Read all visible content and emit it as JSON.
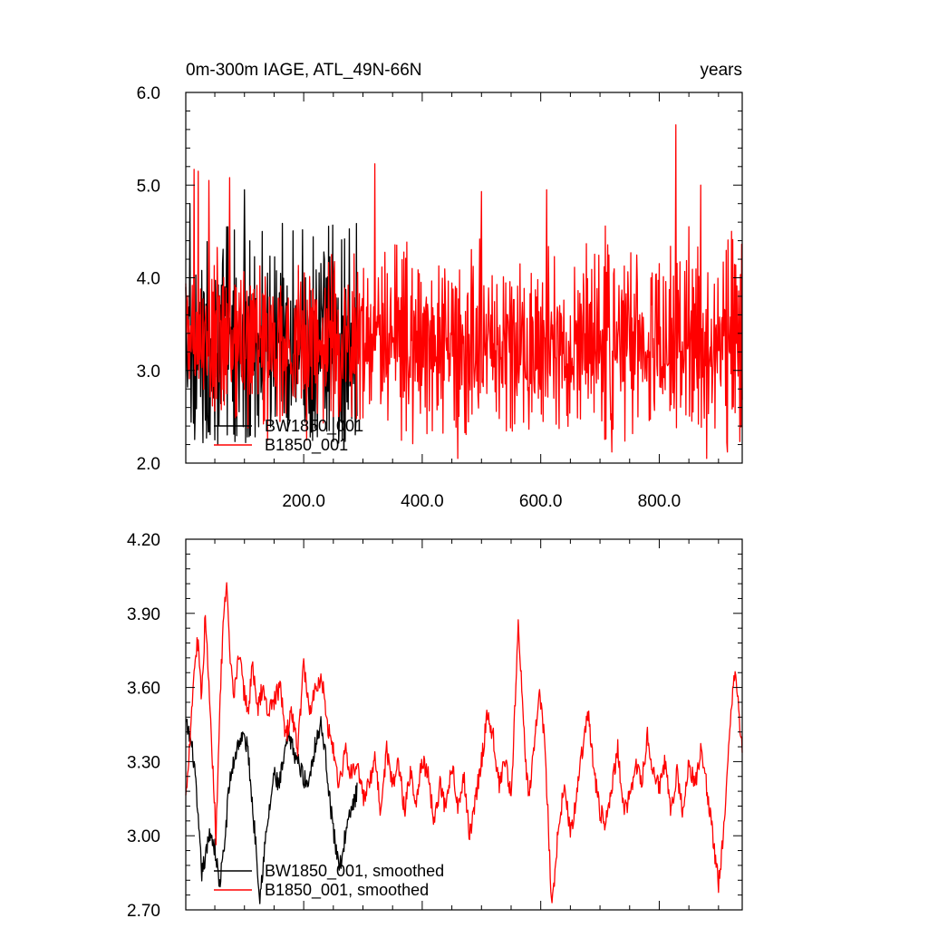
{
  "chart_data": [
    {
      "type": "line",
      "title": "0m-300m IAGE, ATL_49N-66N",
      "units_label": "years",
      "xlim": [
        1,
        940
      ],
      "ylim": [
        2.0,
        6.0
      ],
      "x_tick_labels": [
        "200.0",
        "400.0",
        "600.0",
        "800.0"
      ],
      "x_ticks": [
        200,
        400,
        600,
        800
      ],
      "y_tick_labels": [
        "2.0",
        "3.0",
        "4.0",
        "5.0",
        "6.0"
      ],
      "y_ticks": [
        2.0,
        3.0,
        4.0,
        5.0,
        6.0
      ],
      "grid": false,
      "legend_position": "bottom-left",
      "series": [
        {
          "name": "BW1850_001",
          "color": "#000000",
          "x_range": [
            1,
            290
          ],
          "step": 1,
          "mean": 3.2,
          "amplitude": 0.65,
          "peaks": [
            [
              8,
              4.8
            ],
            [
              100,
              4.95
            ],
            [
              70,
              4.55
            ],
            [
              130,
              4.5
            ],
            [
              235,
              4.2
            ]
          ],
          "troughs": [
            [
              30,
              2.22
            ],
            [
              110,
              2.3
            ],
            [
              260,
              2.42
            ]
          ]
        },
        {
          "name": "B1850_001",
          "color": "#ff0000",
          "x_range": [
            1,
            940
          ],
          "step": 1,
          "mean": 3.3,
          "amplitude": 0.55,
          "peaks": [
            [
              15,
              5.17
            ],
            [
              22,
              5.15
            ],
            [
              40,
              5.05
            ],
            [
              75,
              5.08
            ],
            [
              320,
              5.23
            ],
            [
              500,
              4.93
            ],
            [
              610,
              4.95
            ],
            [
              720,
              5.3
            ],
            [
              828,
              5.65
            ],
            [
              870,
              5.0
            ]
          ],
          "troughs": [
            [
              460,
              2.05
            ],
            [
              720,
              2.12
            ],
            [
              880,
              2.05
            ],
            [
              915,
              2.12
            ]
          ]
        }
      ]
    },
    {
      "type": "line",
      "title": "",
      "xlim": [
        1,
        940
      ],
      "ylim": [
        2.7,
        4.2
      ],
      "y_tick_labels": [
        "2.70",
        "3.00",
        "3.30",
        "3.60",
        "3.90",
        "4.20"
      ],
      "y_ticks": [
        2.7,
        3.0,
        3.3,
        3.6,
        3.9,
        4.2
      ],
      "x_ticks": [
        200,
        400,
        600,
        800
      ],
      "grid": false,
      "legend_position": "bottom-left",
      "series": [
        {
          "name": "BW1850_001, smoothed",
          "color": "#000000",
          "x_range": [
            1,
            290
          ],
          "step": 1,
          "anchors": [
            [
              1,
              3.45
            ],
            [
              8,
              3.4
            ],
            [
              15,
              3.3
            ],
            [
              22,
              3.05
            ],
            [
              28,
              2.85
            ],
            [
              35,
              2.92
            ],
            [
              42,
              3.02
            ],
            [
              50,
              2.95
            ],
            [
              58,
              2.8
            ],
            [
              66,
              2.95
            ],
            [
              74,
              3.2
            ],
            [
              82,
              3.3
            ],
            [
              90,
              3.38
            ],
            [
              98,
              3.4
            ],
            [
              106,
              3.35
            ],
            [
              114,
              3.1
            ],
            [
              120,
              2.95
            ],
            [
              126,
              2.75
            ],
            [
              134,
              2.95
            ],
            [
              142,
              3.1
            ],
            [
              150,
              3.25
            ],
            [
              158,
              3.2
            ],
            [
              166,
              3.3
            ],
            [
              174,
              3.4
            ],
            [
              182,
              3.35
            ],
            [
              190,
              3.3
            ],
            [
              198,
              3.25
            ],
            [
              206,
              3.2
            ],
            [
              214,
              3.3
            ],
            [
              222,
              3.4
            ],
            [
              230,
              3.45
            ],
            [
              238,
              3.3
            ],
            [
              246,
              3.1
            ],
            [
              254,
              2.95
            ],
            [
              262,
              2.88
            ],
            [
              270,
              3.0
            ],
            [
              280,
              3.1
            ],
            [
              290,
              3.18
            ]
          ]
        },
        {
          "name": "B1850_001, smoothed",
          "color": "#ff0000",
          "x_range": [
            1,
            940
          ],
          "step": 1,
          "anchors": [
            [
              1,
              3.15
            ],
            [
              8,
              3.4
            ],
            [
              16,
              3.7
            ],
            [
              22,
              3.8
            ],
            [
              28,
              3.55
            ],
            [
              34,
              3.9
            ],
            [
              40,
              3.6
            ],
            [
              46,
              3.3
            ],
            [
              52,
              3.0
            ],
            [
              58,
              3.5
            ],
            [
              64,
              3.85
            ],
            [
              70,
              4.0
            ],
            [
              76,
              3.7
            ],
            [
              82,
              3.55
            ],
            [
              90,
              3.75
            ],
            [
              98,
              3.6
            ],
            [
              106,
              3.5
            ],
            [
              114,
              3.7
            ],
            [
              122,
              3.5
            ],
            [
              130,
              3.6
            ],
            [
              140,
              3.5
            ],
            [
              150,
              3.55
            ],
            [
              160,
              3.6
            ],
            [
              170,
              3.4
            ],
            [
              180,
              3.5
            ],
            [
              190,
              3.35
            ],
            [
              200,
              3.7
            ],
            [
              210,
              3.5
            ],
            [
              220,
              3.6
            ],
            [
              230,
              3.65
            ],
            [
              240,
              3.45
            ],
            [
              250,
              3.35
            ],
            [
              260,
              3.2
            ],
            [
              270,
              3.35
            ],
            [
              280,
              3.25
            ],
            [
              290,
              3.3
            ],
            [
              300,
              3.15
            ],
            [
              310,
              3.2
            ],
            [
              320,
              3.3
            ],
            [
              330,
              3.1
            ],
            [
              340,
              3.35
            ],
            [
              350,
              3.2
            ],
            [
              360,
              3.3
            ],
            [
              370,
              3.1
            ],
            [
              380,
              3.25
            ],
            [
              390,
              3.15
            ],
            [
              400,
              3.3
            ],
            [
              410,
              3.25
            ],
            [
              420,
              3.05
            ],
            [
              430,
              3.2
            ],
            [
              440,
              3.1
            ],
            [
              450,
              3.3
            ],
            [
              460,
              3.1
            ],
            [
              470,
              3.25
            ],
            [
              480,
              3.0
            ],
            [
              490,
              3.15
            ],
            [
              500,
              3.3
            ],
            [
              510,
              3.5
            ],
            [
              520,
              3.4
            ],
            [
              530,
              3.2
            ],
            [
              540,
              3.3
            ],
            [
              550,
              3.15
            ],
            [
              556,
              3.5
            ],
            [
              562,
              3.84
            ],
            [
              568,
              3.6
            ],
            [
              574,
              3.3
            ],
            [
              580,
              3.15
            ],
            [
              590,
              3.4
            ],
            [
              598,
              3.6
            ],
            [
              606,
              3.4
            ],
            [
              612,
              3.1
            ],
            [
              618,
              2.72
            ],
            [
              624,
              2.85
            ],
            [
              630,
              3.05
            ],
            [
              640,
              3.2
            ],
            [
              650,
              3.0
            ],
            [
              660,
              3.15
            ],
            [
              670,
              3.35
            ],
            [
              680,
              3.5
            ],
            [
              690,
              3.25
            ],
            [
              700,
              3.1
            ],
            [
              710,
              3.05
            ],
            [
              720,
              3.2
            ],
            [
              730,
              3.35
            ],
            [
              740,
              3.1
            ],
            [
              750,
              3.15
            ],
            [
              760,
              3.3
            ],
            [
              770,
              3.2
            ],
            [
              780,
              3.4
            ],
            [
              790,
              3.25
            ],
            [
              800,
              3.2
            ],
            [
              810,
              3.3
            ],
            [
              820,
              3.1
            ],
            [
              830,
              3.25
            ],
            [
              840,
              3.1
            ],
            [
              850,
              3.3
            ],
            [
              860,
              3.2
            ],
            [
              870,
              3.35
            ],
            [
              880,
              3.2
            ],
            [
              890,
              3.0
            ],
            [
              900,
              2.8
            ],
            [
              908,
              3.0
            ],
            [
              916,
              3.3
            ],
            [
              922,
              3.55
            ],
            [
              928,
              3.68
            ],
            [
              934,
              3.5
            ],
            [
              940,
              3.35
            ]
          ]
        }
      ]
    }
  ]
}
